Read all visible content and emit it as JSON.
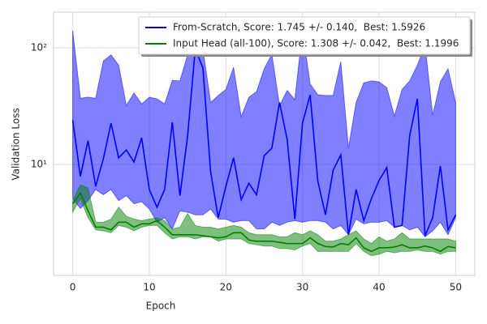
{
  "chart_data": {
    "type": "line",
    "xlabel": "Epoch",
    "ylabel": "Validation Loss",
    "log_y": true,
    "grid": true,
    "legend": "upper right",
    "x": [
      0,
      1,
      2,
      3,
      4,
      5,
      6,
      7,
      8,
      9,
      10,
      11,
      12,
      13,
      14,
      15,
      16,
      17,
      18,
      19,
      20,
      21,
      22,
      23,
      24,
      25,
      26,
      27,
      28,
      29,
      30,
      31,
      32,
      33,
      34,
      35,
      36,
      37,
      38,
      39,
      40,
      41,
      42,
      43,
      44,
      45,
      46,
      47,
      48,
      49,
      50
    ],
    "xlim": [
      -2.5,
      52.5
    ],
    "xticks": [
      0,
      10,
      20,
      30,
      40,
      50
    ],
    "ylim": [
      1.12,
      202
    ],
    "yticks": [
      {
        "value": 10,
        "label": "10¹"
      },
      {
        "value": 100,
        "label": "10²"
      }
    ],
    "series": [
      {
        "name": "From-Scratch, Score: 1.745 +/- 0.140,  Best: 1.5926",
        "color": "#0000ff",
        "values": [
          24,
          7.9,
          16,
          6.5,
          11.2,
          22.6,
          11.4,
          13.3,
          10.5,
          16.9,
          6.1,
          4.3,
          6.1,
          23,
          5.4,
          17.5,
          98,
          67,
          8.7,
          3.5,
          6.5,
          11.4,
          5.0,
          6.9,
          5.5,
          11.9,
          13.8,
          34,
          16.4,
          3.4,
          22.6,
          39.5,
          7.2,
          3.7,
          8.9,
          12.1,
          2.5,
          6.1,
          3.3,
          5.1,
          7.3,
          9.4,
          2.9,
          3.0,
          17.8,
          36.5,
          2.45,
          3.5,
          9.7,
          2.75,
          3.7
        ],
        "upper": [
          140,
          37,
          37.7,
          37,
          77,
          87,
          71,
          32,
          41,
          33,
          37.7,
          36.5,
          33,
          52.5,
          52,
          87,
          94,
          98,
          34,
          39,
          44,
          68,
          25.7,
          37.7,
          42,
          66,
          88,
          32,
          43,
          36,
          140,
          49,
          39.5,
          39,
          39,
          76,
          13.8,
          34,
          50,
          52,
          51,
          45.6,
          26,
          44,
          52,
          71,
          105,
          26.5,
          51,
          66,
          34
        ],
        "lower": [
          5.1,
          4.2,
          4.9,
          6.1,
          5.5,
          6.1,
          4.9,
          5.4,
          4.6,
          4.8,
          4.15,
          3.2,
          3.5,
          2.8,
          4.0,
          3.9,
          3.7,
          3.7,
          4.15,
          3.4,
          3.4,
          3.2,
          3.3,
          3.3,
          2.8,
          2.8,
          3.2,
          3.0,
          3.2,
          3.3,
          3.2,
          3.3,
          3.3,
          3.2,
          2.8,
          3.0,
          2.5,
          3.4,
          3.1,
          3.2,
          3.2,
          3.3,
          2.9,
          3.0,
          2.75,
          2.9,
          2.4,
          2.7,
          3.2,
          2.5,
          3.5
        ]
      },
      {
        "name": "Input Head (all-100), Score: 1.308 +/- 0.042,  Best: 1.1996",
        "color": "#008000",
        "values": [
          4.6,
          5.7,
          4.0,
          2.9,
          2.9,
          2.75,
          3.2,
          3.2,
          2.9,
          3.1,
          3.1,
          3.3,
          2.9,
          2.5,
          2.5,
          2.5,
          2.5,
          2.45,
          2.4,
          2.35,
          2.4,
          2.6,
          2.6,
          2.25,
          2.2,
          2.2,
          2.2,
          2.15,
          2.1,
          2.1,
          2.1,
          2.35,
          2.1,
          1.98,
          1.96,
          2.1,
          2.05,
          2.35,
          1.93,
          1.8,
          1.93,
          1.93,
          1.96,
          2.05,
          1.93,
          1.93,
          2.0,
          1.93,
          1.8,
          1.98,
          1.93
        ],
        "upper": [
          4.9,
          6.7,
          6.3,
          3.2,
          3.2,
          3.4,
          4.3,
          3.6,
          3.4,
          3.3,
          3.4,
          3.5,
          3.3,
          2.8,
          2.9,
          3.8,
          3.0,
          2.9,
          2.9,
          2.8,
          2.9,
          3.0,
          2.9,
          2.6,
          2.5,
          2.5,
          2.5,
          2.4,
          2.4,
          2.6,
          2.5,
          2.7,
          2.5,
          2.2,
          2.2,
          2.3,
          2.5,
          2.7,
          2.3,
          2.1,
          2.4,
          2.2,
          2.3,
          2.6,
          2.3,
          2.3,
          2.3,
          2.3,
          2.3,
          2.3,
          2.2
        ],
        "lower": [
          3.9,
          5.1,
          3.5,
          2.75,
          2.7,
          2.6,
          3.0,
          2.9,
          2.7,
          2.9,
          3.0,
          3.0,
          2.6,
          2.3,
          2.4,
          2.4,
          2.3,
          2.4,
          2.4,
          2.2,
          2.3,
          2.3,
          2.3,
          2.1,
          2.05,
          2.0,
          2.0,
          1.9,
          1.9,
          1.85,
          2.0,
          2.1,
          1.8,
          1.8,
          1.8,
          1.8,
          1.8,
          2.1,
          1.8,
          1.65,
          1.7,
          1.8,
          1.75,
          1.8,
          1.8,
          1.85,
          1.8,
          1.8,
          1.7,
          1.8,
          1.8
        ]
      }
    ]
  }
}
